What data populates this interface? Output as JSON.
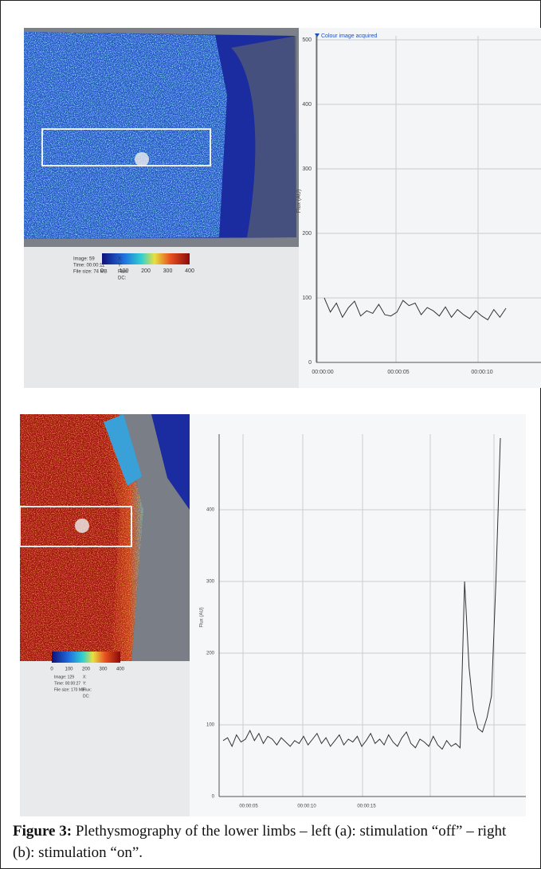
{
  "figure": {
    "panels": [
      {
        "colorbar_ticks": [
          0,
          100,
          200,
          300,
          400
        ],
        "info": [
          "Image: 59",
          "Time: 00:00:11",
          "File size: 74 MB",
          "X:",
          "Y:",
          "Flux:",
          "DC:"
        ],
        "chart": {
          "type": "line",
          "annotation": "Colour image acquired",
          "y_label": "Flux (AU)",
          "ylim": [
            0,
            500
          ],
          "yticks": [
            0,
            100,
            200,
            300,
            400,
            500
          ],
          "x_labels": [
            "00:00:00",
            "00:00:05",
            "00:00:10"
          ],
          "values": [
            100,
            78,
            92,
            70,
            85,
            95,
            72,
            80,
            76,
            90,
            74,
            72,
            78,
            96,
            88,
            92,
            74,
            85,
            80,
            72,
            86,
            70,
            82,
            74,
            68,
            80,
            72,
            66,
            82,
            70,
            84
          ]
        }
      },
      {
        "colorbar_ticks": [
          0,
          100,
          200,
          300,
          400
        ],
        "info": [
          "Image: 129",
          "Time: 00:00:27",
          "File size: 170 MB",
          "X:",
          "Y:",
          "Flux:",
          "DC:"
        ],
        "chart": {
          "type": "line",
          "y_label": "Flux (AU)",
          "ylim": [
            0,
            500
          ],
          "yticks": [
            0,
            100,
            200,
            300,
            400
          ],
          "x_labels": [
            "00:00:05",
            "00:00:10",
            "00:00:15"
          ],
          "values": [
            78,
            82,
            70,
            86,
            76,
            80,
            92,
            78,
            88,
            74,
            84,
            80,
            72,
            82,
            76,
            70,
            78,
            74,
            84,
            72,
            80,
            88,
            74,
            82,
            70,
            78,
            86,
            72,
            80,
            76,
            84,
            70,
            78,
            88,
            74,
            80,
            72,
            86,
            76,
            70,
            82,
            90,
            74,
            68,
            80,
            76,
            70,
            84,
            72,
            66,
            78,
            70,
            74,
            68,
            300,
            180,
            120,
            95,
            90,
            110,
            140,
            300,
            500
          ]
        }
      }
    ],
    "caption": {
      "label": "Figure 3:",
      "text": "Plethysmography of the lower limbs – left (a): stimulation “off” – right (b): stimulation “on”."
    }
  }
}
